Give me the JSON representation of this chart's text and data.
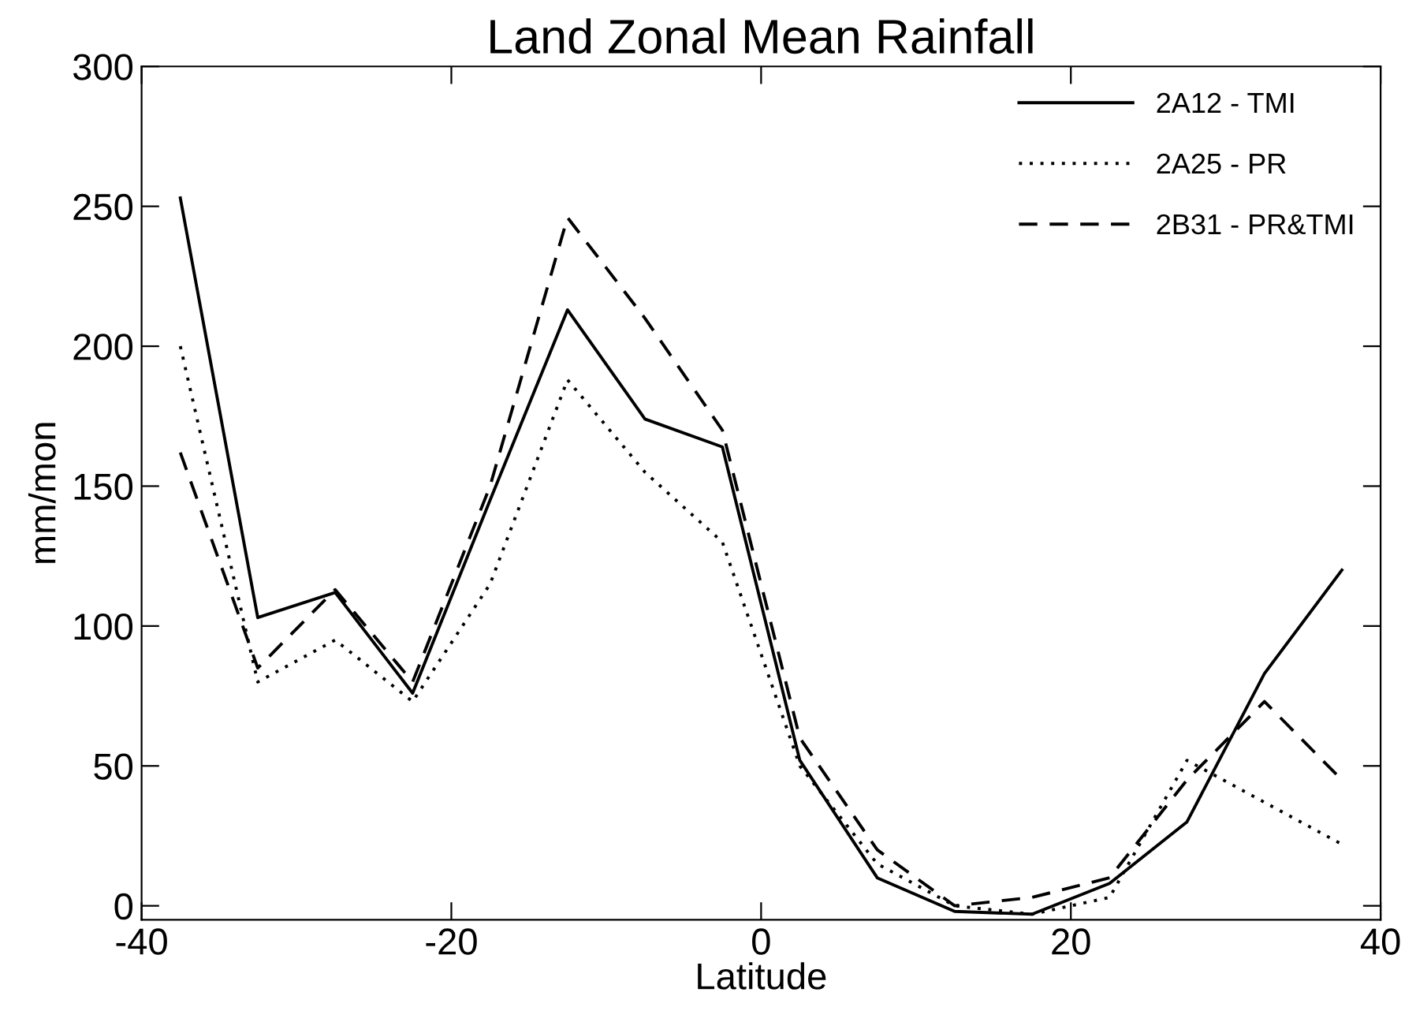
{
  "chart_data": {
    "type": "line",
    "title": "Land Zonal Mean Rainfall",
    "xlabel": "Latitude",
    "ylabel": "mm/mon",
    "x": [
      -37.5,
      -32.5,
      -27.5,
      -22.5,
      -17.5,
      -12.5,
      -7.5,
      -2.5,
      2.5,
      7.5,
      12.5,
      17.5,
      22.5,
      27.5,
      32.5,
      37.5
    ],
    "series": [
      {
        "name": "2A12 - TMI",
        "color": "#000000",
        "line_style": "solid",
        "values": [
          253,
          103,
          112,
          76,
          145,
          213,
          174,
          164,
          52,
          10,
          -2,
          -3,
          8,
          30,
          83,
          120
        ]
      },
      {
        "name": "2A25 - PR",
        "color": "#000000",
        "line_style": "dotted",
        "values": [
          200,
          80,
          95,
          73,
          115,
          188,
          155,
          130,
          50,
          15,
          0,
          -3,
          3,
          52,
          37,
          22
        ]
      },
      {
        "name": "2B31 - PR&TMI",
        "color": "#000000",
        "line_style": "dashed",
        "values": [
          162,
          85,
          113,
          80,
          150,
          246,
          210,
          170,
          60,
          20,
          0,
          3,
          10,
          45,
          73,
          45
        ]
      }
    ],
    "xlim": [
      -40,
      40
    ],
    "ylim": [
      -5,
      300
    ],
    "xticks": [
      -40,
      -20,
      0,
      20,
      40
    ],
    "yticks": [
      0,
      50,
      100,
      150,
      200,
      250,
      300
    ],
    "grid": false,
    "legend": "top right",
    "marker": "none"
  }
}
